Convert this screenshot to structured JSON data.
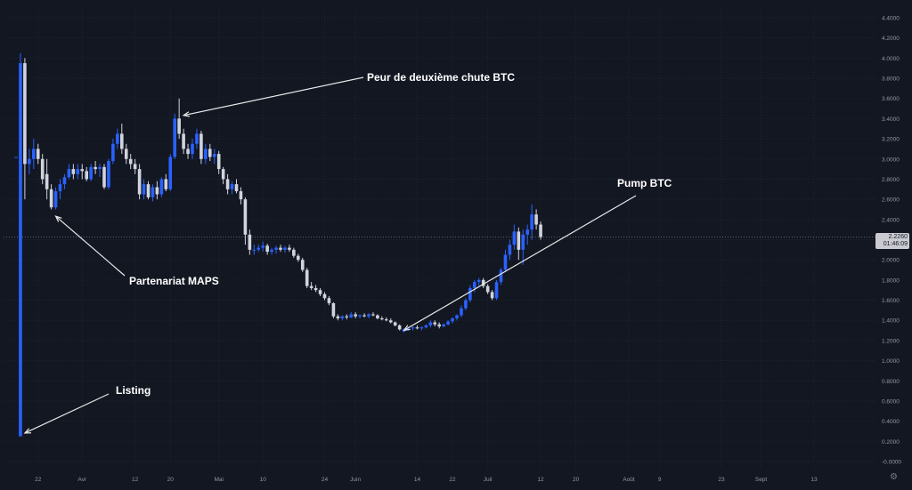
{
  "colors": {
    "background": "#131722",
    "grid": "#1f2433",
    "up": "#2962ff",
    "down": "#d1d4dc",
    "text": "#ffffff",
    "axis_text": "#9598a1",
    "price_line": "#5d606b"
  },
  "price_badge": {
    "price": "2.2260",
    "sub": "01:46:09"
  },
  "settings_icon": "gear-icon",
  "chart_data": {
    "type": "candlestick",
    "grid": true,
    "ylim": [
      -0.05,
      4.5
    ],
    "y_ticks": [
      "4.4000",
      "4.2000",
      "4.0000",
      "3.8000",
      "3.6000",
      "3.4000",
      "3.2000",
      "3.0000",
      "2.8000",
      "2.6000",
      "2.4000",
      "2.2000",
      "2.0000",
      "1.8000",
      "1.6000",
      "1.4000",
      "1.2000",
      "1.0000",
      "0.8000",
      "0.6000",
      "0.4000",
      "0.2000",
      "-0.0000"
    ],
    "x_ticks": [
      {
        "label": "22",
        "i": 5
      },
      {
        "label": "Avr",
        "i": 15
      },
      {
        "label": "12",
        "i": 27
      },
      {
        "label": "20",
        "i": 35
      },
      {
        "label": "Mai",
        "i": 46
      },
      {
        "label": "10",
        "i": 56
      },
      {
        "label": "24",
        "i": 70
      },
      {
        "label": "Juin",
        "i": 77
      },
      {
        "label": "14",
        "i": 91
      },
      {
        "label": "22",
        "i": 99
      },
      {
        "label": "Juil",
        "i": 107
      },
      {
        "label": "12",
        "i": 119
      },
      {
        "label": "20",
        "i": 127
      },
      {
        "label": "Août",
        "i": 139
      },
      {
        "label": "9",
        "i": 146
      },
      {
        "label": "23",
        "i": 160
      },
      {
        "label": "Sept",
        "i": 169
      },
      {
        "label": "13",
        "i": 181
      }
    ],
    "current_price": 2.226,
    "candles": [
      [
        3.02,
        3.02,
        3.02,
        3.02
      ],
      [
        0.25,
        4.05,
        0.25,
        3.95
      ],
      [
        3.95,
        4.0,
        2.6,
        2.95
      ],
      [
        2.95,
        3.1,
        2.85,
        3.0
      ],
      [
        3.0,
        3.2,
        2.9,
        3.1
      ],
      [
        3.1,
        3.15,
        2.95,
        3.0
      ],
      [
        3.0,
        3.05,
        2.75,
        2.8
      ],
      [
        2.85,
        3.0,
        2.6,
        2.7
      ],
      [
        2.7,
        2.75,
        2.5,
        2.52
      ],
      [
        2.52,
        2.72,
        2.5,
        2.68
      ],
      [
        2.68,
        2.8,
        2.6,
        2.75
      ],
      [
        2.75,
        2.85,
        2.7,
        2.82
      ],
      [
        2.82,
        2.95,
        2.8,
        2.9
      ],
      [
        2.9,
        2.95,
        2.8,
        2.85
      ],
      [
        2.85,
        2.95,
        2.8,
        2.9
      ],
      [
        2.9,
        2.95,
        2.8,
        2.88
      ],
      [
        2.88,
        2.92,
        2.78,
        2.8
      ],
      [
        2.8,
        2.95,
        2.78,
        2.92
      ],
      [
        2.92,
        2.98,
        2.85,
        2.9
      ],
      [
        2.9,
        2.95,
        2.82,
        2.92
      ],
      [
        2.92,
        2.95,
        2.7,
        2.72
      ],
      [
        2.72,
        3.0,
        2.7,
        2.98
      ],
      [
        2.98,
        3.2,
        2.95,
        3.15
      ],
      [
        3.15,
        3.3,
        3.1,
        3.25
      ],
      [
        3.25,
        3.35,
        3.05,
        3.1
      ],
      [
        3.1,
        3.15,
        2.95,
        3.0
      ],
      [
        3.0,
        3.05,
        2.9,
        2.95
      ],
      [
        2.95,
        3.0,
        2.85,
        2.9
      ],
      [
        2.9,
        2.95,
        2.6,
        2.65
      ],
      [
        2.65,
        2.8,
        2.6,
        2.75
      ],
      [
        2.75,
        2.78,
        2.6,
        2.62
      ],
      [
        2.62,
        2.75,
        2.58,
        2.72
      ],
      [
        2.72,
        2.78,
        2.6,
        2.65
      ],
      [
        2.65,
        2.82,
        2.62,
        2.8
      ],
      [
        2.8,
        2.85,
        2.68,
        2.7
      ],
      [
        2.7,
        3.05,
        2.68,
        3.02
      ],
      [
        3.02,
        3.45,
        3.0,
        3.4
      ],
      [
        3.4,
        3.6,
        3.2,
        3.25
      ],
      [
        3.25,
        3.3,
        3.05,
        3.1
      ],
      [
        3.1,
        3.15,
        3.0,
        3.05
      ],
      [
        3.05,
        3.2,
        3.0,
        3.15
      ],
      [
        3.15,
        3.3,
        3.1,
        3.25
      ],
      [
        3.25,
        3.28,
        2.95,
        3.0
      ],
      [
        3.0,
        3.15,
        2.95,
        3.1
      ],
      [
        3.1,
        3.15,
        2.98,
        3.02
      ],
      [
        3.02,
        3.1,
        2.95,
        3.05
      ],
      [
        3.05,
        3.08,
        2.85,
        2.9
      ],
      [
        2.9,
        2.92,
        2.75,
        2.8
      ],
      [
        2.8,
        2.85,
        2.65,
        2.7
      ],
      [
        2.7,
        2.78,
        2.65,
        2.75
      ],
      [
        2.75,
        2.8,
        2.66,
        2.68
      ],
      [
        2.68,
        2.72,
        2.55,
        2.6
      ],
      [
        2.6,
        2.62,
        2.15,
        2.25
      ],
      [
        2.25,
        2.3,
        2.05,
        2.1
      ],
      [
        2.1,
        2.15,
        2.05,
        2.1
      ],
      [
        2.1,
        2.15,
        2.08,
        2.12
      ],
      [
        2.12,
        2.18,
        2.08,
        2.14
      ],
      [
        2.14,
        2.16,
        2.05,
        2.08
      ],
      [
        2.08,
        2.12,
        2.05,
        2.1
      ],
      [
        2.1,
        2.14,
        2.06,
        2.12
      ],
      [
        2.12,
        2.15,
        2.08,
        2.1
      ],
      [
        2.1,
        2.14,
        2.07,
        2.12
      ],
      [
        2.12,
        2.15,
        2.08,
        2.1
      ],
      [
        2.1,
        2.12,
        2.02,
        2.04
      ],
      [
        2.04,
        2.06,
        1.98,
        2.0
      ],
      [
        2.0,
        2.02,
        1.88,
        1.9
      ],
      [
        1.9,
        1.92,
        1.72,
        1.74
      ],
      [
        1.74,
        1.78,
        1.7,
        1.72
      ],
      [
        1.72,
        1.75,
        1.68,
        1.7
      ],
      [
        1.7,
        1.72,
        1.64,
        1.66
      ],
      [
        1.66,
        1.68,
        1.6,
        1.62
      ],
      [
        1.62,
        1.64,
        1.55,
        1.57
      ],
      [
        1.57,
        1.58,
        1.42,
        1.44
      ],
      [
        1.44,
        1.46,
        1.4,
        1.42
      ],
      [
        1.42,
        1.45,
        1.4,
        1.44
      ],
      [
        1.44,
        1.46,
        1.41,
        1.43
      ],
      [
        1.43,
        1.48,
        1.42,
        1.46
      ],
      [
        1.46,
        1.48,
        1.42,
        1.44
      ],
      [
        1.44,
        1.46,
        1.42,
        1.45
      ],
      [
        1.45,
        1.47,
        1.43,
        1.44
      ],
      [
        1.44,
        1.47,
        1.42,
        1.46
      ],
      [
        1.46,
        1.48,
        1.44,
        1.45
      ],
      [
        1.45,
        1.46,
        1.41,
        1.42
      ],
      [
        1.42,
        1.44,
        1.4,
        1.41
      ],
      [
        1.41,
        1.43,
        1.39,
        1.4
      ],
      [
        1.4,
        1.42,
        1.37,
        1.38
      ],
      [
        1.38,
        1.39,
        1.34,
        1.35
      ],
      [
        1.35,
        1.36,
        1.3,
        1.31
      ],
      [
        1.29,
        1.32,
        1.28,
        1.31
      ],
      [
        1.31,
        1.33,
        1.3,
        1.32
      ],
      [
        1.32,
        1.34,
        1.3,
        1.33
      ],
      [
        1.33,
        1.35,
        1.31,
        1.32
      ],
      [
        1.32,
        1.34,
        1.3,
        1.33
      ],
      [
        1.33,
        1.36,
        1.32,
        1.35
      ],
      [
        1.35,
        1.4,
        1.33,
        1.38
      ],
      [
        1.38,
        1.4,
        1.34,
        1.36
      ],
      [
        1.36,
        1.38,
        1.32,
        1.34
      ],
      [
        1.34,
        1.37,
        1.33,
        1.36
      ],
      [
        1.36,
        1.4,
        1.35,
        1.39
      ],
      [
        1.39,
        1.43,
        1.37,
        1.42
      ],
      [
        1.42,
        1.46,
        1.4,
        1.45
      ],
      [
        1.45,
        1.55,
        1.43,
        1.52
      ],
      [
        1.52,
        1.62,
        1.5,
        1.6
      ],
      [
        1.6,
        1.75,
        1.58,
        1.72
      ],
      [
        1.72,
        1.8,
        1.68,
        1.78
      ],
      [
        1.78,
        1.82,
        1.74,
        1.8
      ],
      [
        1.8,
        1.82,
        1.72,
        1.74
      ],
      [
        1.74,
        1.76,
        1.66,
        1.68
      ],
      [
        1.68,
        1.7,
        1.6,
        1.62
      ],
      [
        1.62,
        1.8,
        1.6,
        1.78
      ],
      [
        1.78,
        1.92,
        1.75,
        1.9
      ],
      [
        1.9,
        2.1,
        1.88,
        2.05
      ],
      [
        2.05,
        2.2,
        2.0,
        2.15
      ],
      [
        2.15,
        2.35,
        2.1,
        2.28
      ],
      [
        2.28,
        2.32,
        2.0,
        2.1
      ],
      [
        2.1,
        2.3,
        1.95,
        2.25
      ],
      [
        2.25,
        2.35,
        2.15,
        2.3
      ],
      [
        2.3,
        2.55,
        2.2,
        2.45
      ],
      [
        2.45,
        2.5,
        2.3,
        2.35
      ],
      [
        2.35,
        2.38,
        2.2,
        2.226
      ]
    ],
    "annotations": [
      {
        "text": "Peur de deuxième chute BTC",
        "at": 37,
        "price": 3.45
      },
      {
        "text": "Partenariat MAPS",
        "at": 8,
        "price": 2.45
      },
      {
        "text": "Listing",
        "at": 1,
        "price": 0.3
      },
      {
        "text": "Pump BTC",
        "at": 87,
        "price": 1.32
      }
    ]
  }
}
